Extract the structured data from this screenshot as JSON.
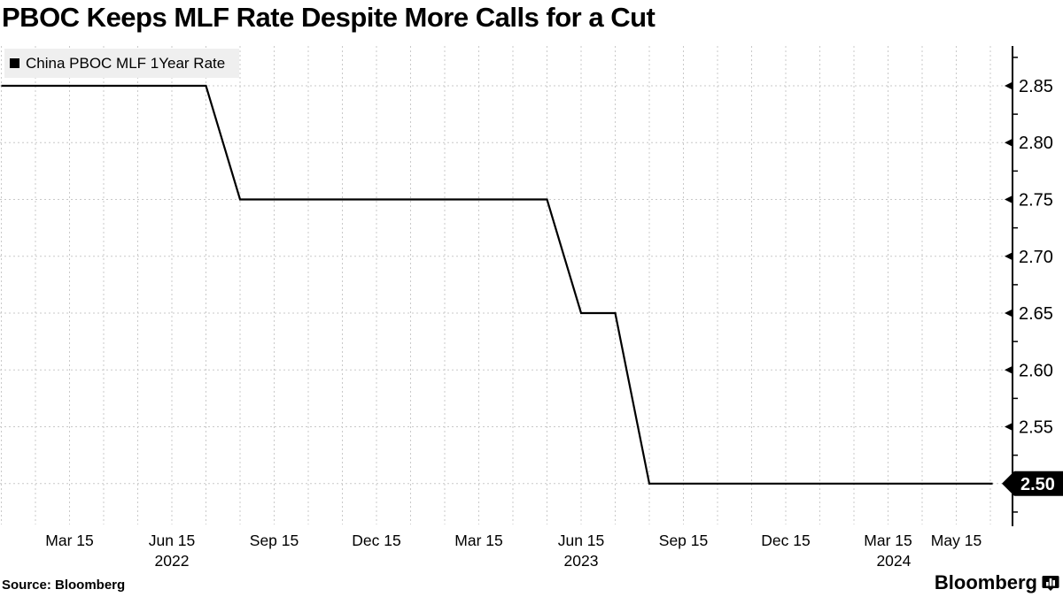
{
  "title": "PBOC Keeps MLF Rate Despite More Calls for a Cut",
  "legend": {
    "label": "China PBOC MLF 1Year Rate",
    "marker_color": "#000000",
    "background": "#efefef"
  },
  "footer": {
    "source_label": "Source: Bloomberg",
    "brand_name": "Bloomberg",
    "brand_icon": "bloomberg-terminal-icon"
  },
  "colors": {
    "line": "#000000",
    "grid": "#c9c9c9",
    "axis": "#000000",
    "text": "#000000",
    "last_value_bg": "#000000",
    "last_value_fg": "#ffffff"
  },
  "chart_data": {
    "type": "line",
    "title": "PBOC Keeps MLF Rate Despite More Calls for a Cut",
    "legend_position": "top-left",
    "grid": true,
    "ylim": [
      2.4625,
      2.885
    ],
    "y_major_ticks": [
      2.85,
      2.8,
      2.75,
      2.7,
      2.65,
      2.6,
      2.55,
      2.5
    ],
    "y_tick_labels": [
      "2.85",
      "2.80",
      "2.75",
      "2.70",
      "2.65",
      "2.60",
      "2.55",
      "2.50"
    ],
    "y_minor_tick_step": 0.025,
    "last_value": 2.5,
    "last_value_label": "2.50",
    "x_ticks": [
      {
        "label": "Mar 15",
        "date": "2022-03-15"
      },
      {
        "label": "Jun 15",
        "date": "2022-06-15"
      },
      {
        "label": "Sep 15",
        "date": "2022-09-15"
      },
      {
        "label": "Dec 15",
        "date": "2022-12-15"
      },
      {
        "label": "Mar 15",
        "date": "2023-03-15"
      },
      {
        "label": "Jun 15",
        "date": "2023-06-15"
      },
      {
        "label": "Sep 15",
        "date": "2023-09-15"
      },
      {
        "label": "Dec 15",
        "date": "2023-12-15"
      },
      {
        "label": "Mar 15",
        "date": "2024-03-15"
      },
      {
        "label": "May 15",
        "date": "2024-05-15"
      }
    ],
    "x_year_labels": [
      {
        "label": "2022",
        "date": "2022-06-15"
      },
      {
        "label": "2023",
        "date": "2023-06-15"
      },
      {
        "label": "2024",
        "date": "2024-03-20"
      }
    ],
    "series": [
      {
        "name": "China PBOC MLF 1Year Rate",
        "color": "#000000",
        "points": [
          [
            "2022-01-15",
            2.85
          ],
          [
            "2022-02-15",
            2.85
          ],
          [
            "2022-03-15",
            2.85
          ],
          [
            "2022-04-15",
            2.85
          ],
          [
            "2022-05-15",
            2.85
          ],
          [
            "2022-06-15",
            2.85
          ],
          [
            "2022-07-15",
            2.85
          ],
          [
            "2022-08-15",
            2.75
          ],
          [
            "2022-09-15",
            2.75
          ],
          [
            "2022-10-15",
            2.75
          ],
          [
            "2022-11-15",
            2.75
          ],
          [
            "2022-12-15",
            2.75
          ],
          [
            "2023-01-15",
            2.75
          ],
          [
            "2023-02-15",
            2.75
          ],
          [
            "2023-03-15",
            2.75
          ],
          [
            "2023-04-15",
            2.75
          ],
          [
            "2023-05-15",
            2.75
          ],
          [
            "2023-06-15",
            2.65
          ],
          [
            "2023-07-15",
            2.65
          ],
          [
            "2023-08-15",
            2.5
          ],
          [
            "2023-09-15",
            2.5
          ],
          [
            "2023-10-15",
            2.5
          ],
          [
            "2023-11-15",
            2.5
          ],
          [
            "2023-12-15",
            2.5
          ],
          [
            "2024-01-15",
            2.5
          ],
          [
            "2024-02-15",
            2.5
          ],
          [
            "2024-03-15",
            2.5
          ],
          [
            "2024-04-15",
            2.5
          ],
          [
            "2024-05-15",
            2.5
          ],
          [
            "2024-06-17",
            2.5
          ]
        ]
      }
    ]
  }
}
